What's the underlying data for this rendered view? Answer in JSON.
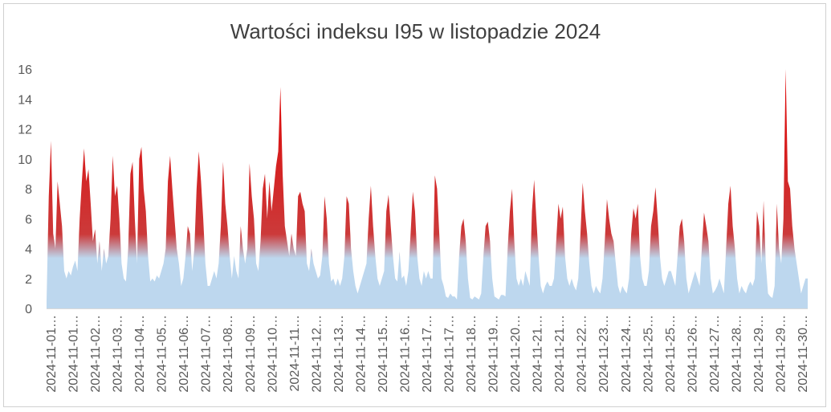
{
  "chart_data": {
    "type": "area",
    "title": "Wartości indeksu I95 w listopadzie 2024",
    "xlabel": "",
    "ylabel": "",
    "ylim": [
      0,
      16
    ],
    "yticks": [
      0,
      2,
      4,
      6,
      8,
      10,
      12,
      14,
      16
    ],
    "grid": false,
    "legend": "none",
    "gradient_threshold": 4,
    "colors": {
      "high": "#e00000",
      "low": "#bdd7ee",
      "axis": "#d9d9d9"
    },
    "x_tick_labels": [
      "2024-11-01…",
      "2024-11-01…",
      "2024-11-02…",
      "2024-11-03…",
      "2024-11-04…",
      "2024-11-05…",
      "2024-11-06…",
      "2024-11-07…",
      "2024-11-08…",
      "2024-11-09…",
      "2024-11-10…",
      "2024-11-11…",
      "2024-11-12…",
      "2024-11-13…",
      "2024-11-14…",
      "2024-11-15…",
      "2024-11-16…",
      "2024-11-17…",
      "2024-11-17…",
      "2024-11-18…",
      "2024-11-19…",
      "2024-11-20…",
      "2024-11-21…",
      "2024-11-21…",
      "2024-11-22…",
      "2024-11-23…",
      "2024-11-24…",
      "2024-11-25…",
      "2024-11-25…",
      "2024-11-26…",
      "2024-11-27…",
      "2024-11-28…",
      "2024-11-29…",
      "2024-11-29…",
      "2024-11-30…"
    ],
    "series": [
      {
        "values": [
          0.5,
          7.5,
          11.2,
          5.0,
          4.0,
          8.5,
          7.0,
          5.5,
          2.5,
          2.0,
          2.5,
          2.2,
          2.8,
          3.2,
          2.5,
          6.0,
          8.5,
          10.7,
          8.5,
          9.3,
          7.0,
          4.5,
          5.3,
          3.0,
          4.5,
          2.5,
          4.0,
          3.0,
          3.5,
          6.0,
          10.2,
          7.5,
          8.2,
          6.0,
          3.0,
          2.0,
          1.8,
          4.0,
          9.0,
          9.8,
          6.0,
          3.0,
          10.0,
          10.8,
          8.0,
          6.5,
          3.5,
          1.8,
          2.0,
          1.8,
          2.2,
          2.0,
          2.5,
          3.0,
          4.0,
          8.5,
          10.2,
          8.0,
          6.0,
          4.0,
          3.0,
          1.5,
          2.0,
          3.5,
          5.5,
          5.0,
          2.5,
          4.0,
          8.0,
          10.5,
          8.5,
          6.0,
          3.0,
          1.5,
          1.5,
          2.0,
          2.5,
          2.0,
          3.0,
          5.5,
          9.8,
          7.0,
          5.5,
          3.5,
          2.0,
          3.5,
          2.5,
          2.0,
          5.5,
          4.0,
          3.0,
          4.0,
          9.7,
          7.5,
          6.0,
          3.0,
          2.5,
          4.5,
          8.0,
          9.0,
          6.0,
          8.5,
          6.5,
          8.0,
          9.5,
          10.5,
          14.8,
          9.0,
          5.5,
          4.5,
          3.5,
          5.0,
          4.0,
          3.5,
          7.5,
          7.8,
          7.0,
          6.5,
          3.0,
          2.5,
          4.0,
          3.0,
          2.5,
          2.0,
          2.2,
          3.5,
          7.5,
          6.0,
          3.0,
          1.8,
          2.0,
          1.5,
          2.0,
          1.5,
          2.0,
          3.5,
          7.5,
          7.0,
          4.0,
          2.5,
          1.5,
          1.0,
          1.5,
          2.0,
          2.5,
          3.0,
          6.0,
          8.2,
          5.5,
          3.5,
          2.0,
          1.5,
          2.0,
          2.5,
          6.5,
          7.6,
          5.5,
          3.5,
          2.0,
          1.8,
          3.8,
          2.0,
          2.2,
          1.5,
          2.5,
          5.0,
          7.8,
          6.5,
          3.5,
          2.0,
          1.5,
          2.5,
          2.0,
          2.5,
          2.0,
          2.0,
          8.9,
          8.0,
          5.0,
          2.0,
          1.5,
          0.8,
          0.7,
          1.0,
          0.8,
          0.8,
          0.6,
          3.5,
          5.5,
          6.0,
          4.5,
          2.0,
          0.7,
          0.6,
          0.8,
          0.7,
          0.6,
          1.0,
          3.5,
          5.5,
          5.8,
          4.5,
          2.0,
          0.8,
          0.7,
          0.6,
          0.9,
          0.9,
          0.8,
          4.0,
          6.5,
          8.0,
          4.5,
          2.0,
          1.5,
          2.0,
          1.5,
          2.5,
          2.0,
          1.5,
          6.5,
          8.6,
          6.0,
          3.5,
          1.5,
          1.0,
          1.5,
          1.8,
          1.5,
          1.5,
          2.0,
          4.5,
          7.0,
          6.0,
          6.8,
          3.5,
          2.0,
          1.5,
          2.0,
          1.5,
          1.2,
          2.0,
          5.0,
          8.4,
          6.5,
          5.0,
          3.0,
          1.5,
          1.0,
          1.5,
          1.2,
          1.0,
          2.0,
          4.5,
          7.3,
          6.0,
          5.0,
          4.5,
          3.0,
          1.5,
          1.0,
          1.5,
          1.2,
          1.0,
          2.0,
          5.0,
          6.7,
          6.0,
          7.0,
          3.5,
          2.0,
          1.5,
          1.5,
          2.5,
          5.5,
          6.5,
          8.1,
          6.0,
          3.5,
          2.0,
          1.5,
          2.0,
          2.5,
          2.5,
          2.0,
          1.5,
          3.5,
          5.5,
          6.0,
          4.5,
          2.0,
          1.0,
          1.5,
          2.0,
          2.5,
          2.0,
          1.5,
          4.0,
          6.4,
          5.5,
          4.5,
          2.0,
          1.0,
          1.2,
          1.5,
          2.0,
          1.5,
          1.0,
          4.0,
          7.0,
          8.2,
          5.5,
          4.0,
          2.0,
          1.0,
          1.5,
          1.2,
          1.0,
          1.5,
          1.8,
          1.5,
          2.0,
          6.5,
          5.5,
          3.0,
          7.2,
          3.0,
          1.0,
          0.8,
          0.7,
          1.5,
          7.0,
          4.0,
          3.0,
          6.0,
          16.0,
          8.5,
          8.0,
          5.5,
          4.0,
          3.0,
          2.0,
          1.0,
          1.5,
          2.0,
          2.0
        ]
      }
    ]
  }
}
